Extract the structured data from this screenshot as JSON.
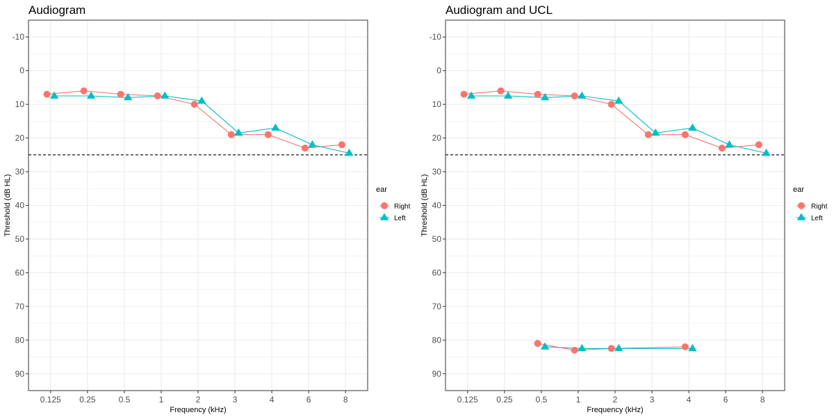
{
  "chart_data": [
    {
      "type": "line",
      "title": "Audiogram",
      "xlabel": "Frequency (kHz)",
      "ylabel": "Threshold (dB HL)",
      "x_categories": [
        "0.125",
        "0.25",
        "0.5",
        "1",
        "2",
        "3",
        "4",
        "6",
        "8"
      ],
      "ylim": [
        -15,
        95
      ],
      "y_reversed": true,
      "y_ticks": [
        -10,
        0,
        10,
        20,
        30,
        40,
        50,
        60,
        70,
        80,
        90
      ],
      "y_tick_labels": [
        "-10",
        "0",
        "10",
        "20",
        "30",
        "40",
        "50",
        "60",
        "70",
        "80",
        "90"
      ],
      "grid": true,
      "reference_line": {
        "y": 25,
        "style": "dashed"
      },
      "legend": {
        "title": "ear",
        "position": "right",
        "entries": [
          "Right",
          "Left"
        ]
      },
      "series": [
        {
          "name": "Right",
          "marker": "circle",
          "groups": [
            {
              "x": [
                "0.125",
                "0.25",
                "0.5",
                "1",
                "2",
                "3",
                "4",
                "6",
                "8"
              ],
              "y": [
                7,
                6,
                7,
                7.5,
                10,
                19,
                19,
                23,
                22
              ]
            }
          ]
        },
        {
          "name": "Left",
          "marker": "triangle",
          "groups": [
            {
              "x": [
                "0.125",
                "0.25",
                "0.5",
                "1",
                "2",
                "3",
                "4",
                "6",
                "8"
              ],
              "y": [
                7.5,
                7.5,
                8,
                7.5,
                9,
                18.5,
                17,
                22,
                24.5
              ]
            }
          ]
        }
      ]
    },
    {
      "type": "line",
      "title": "Audiogram and UCL",
      "xlabel": "Frequency (kHz)",
      "ylabel": "Threshold (dB HL)",
      "x_categories": [
        "0.125",
        "0.25",
        "0.5",
        "1",
        "2",
        "3",
        "4",
        "6",
        "8"
      ],
      "ylim": [
        -15,
        95
      ],
      "y_reversed": true,
      "y_ticks": [
        -10,
        0,
        10,
        20,
        30,
        40,
        50,
        60,
        70,
        80,
        90
      ],
      "y_tick_labels": [
        "-10",
        "0",
        "10",
        "20",
        "30",
        "40",
        "50",
        "60",
        "70",
        "80",
        "90"
      ],
      "grid": true,
      "reference_line": {
        "y": 25,
        "style": "dashed"
      },
      "legend": {
        "title": "ear",
        "position": "right",
        "entries": [
          "Right",
          "Left"
        ]
      },
      "series": [
        {
          "name": "Right",
          "marker": "circle",
          "groups": [
            {
              "x": [
                "0.125",
                "0.25",
                "0.5",
                "1",
                "2",
                "3",
                "4",
                "6",
                "8"
              ],
              "y": [
                7,
                6,
                7,
                7.5,
                10,
                19,
                19,
                23,
                22
              ]
            },
            {
              "x": [
                "0.5",
                "1",
                "2",
                "4"
              ],
              "y": [
                81,
                83,
                82.5,
                82
              ]
            }
          ]
        },
        {
          "name": "Left",
          "marker": "triangle",
          "groups": [
            {
              "x": [
                "0.125",
                "0.25",
                "0.5",
                "1",
                "2",
                "3",
                "4",
                "6",
                "8"
              ],
              "y": [
                7.5,
                7.5,
                8,
                7.5,
                9,
                18.5,
                17,
                22,
                24.5
              ]
            },
            {
              "x": [
                "0.5",
                "1",
                "2",
                "4"
              ],
              "y": [
                82,
                82.5,
                82.5,
                82.5
              ]
            }
          ]
        }
      ]
    }
  ],
  "colors": {
    "Right": "#F8766D",
    "Left": "#00BFC4",
    "grid": "#ebebeb",
    "panel_border": "#333333",
    "reference_line": "#000000"
  }
}
